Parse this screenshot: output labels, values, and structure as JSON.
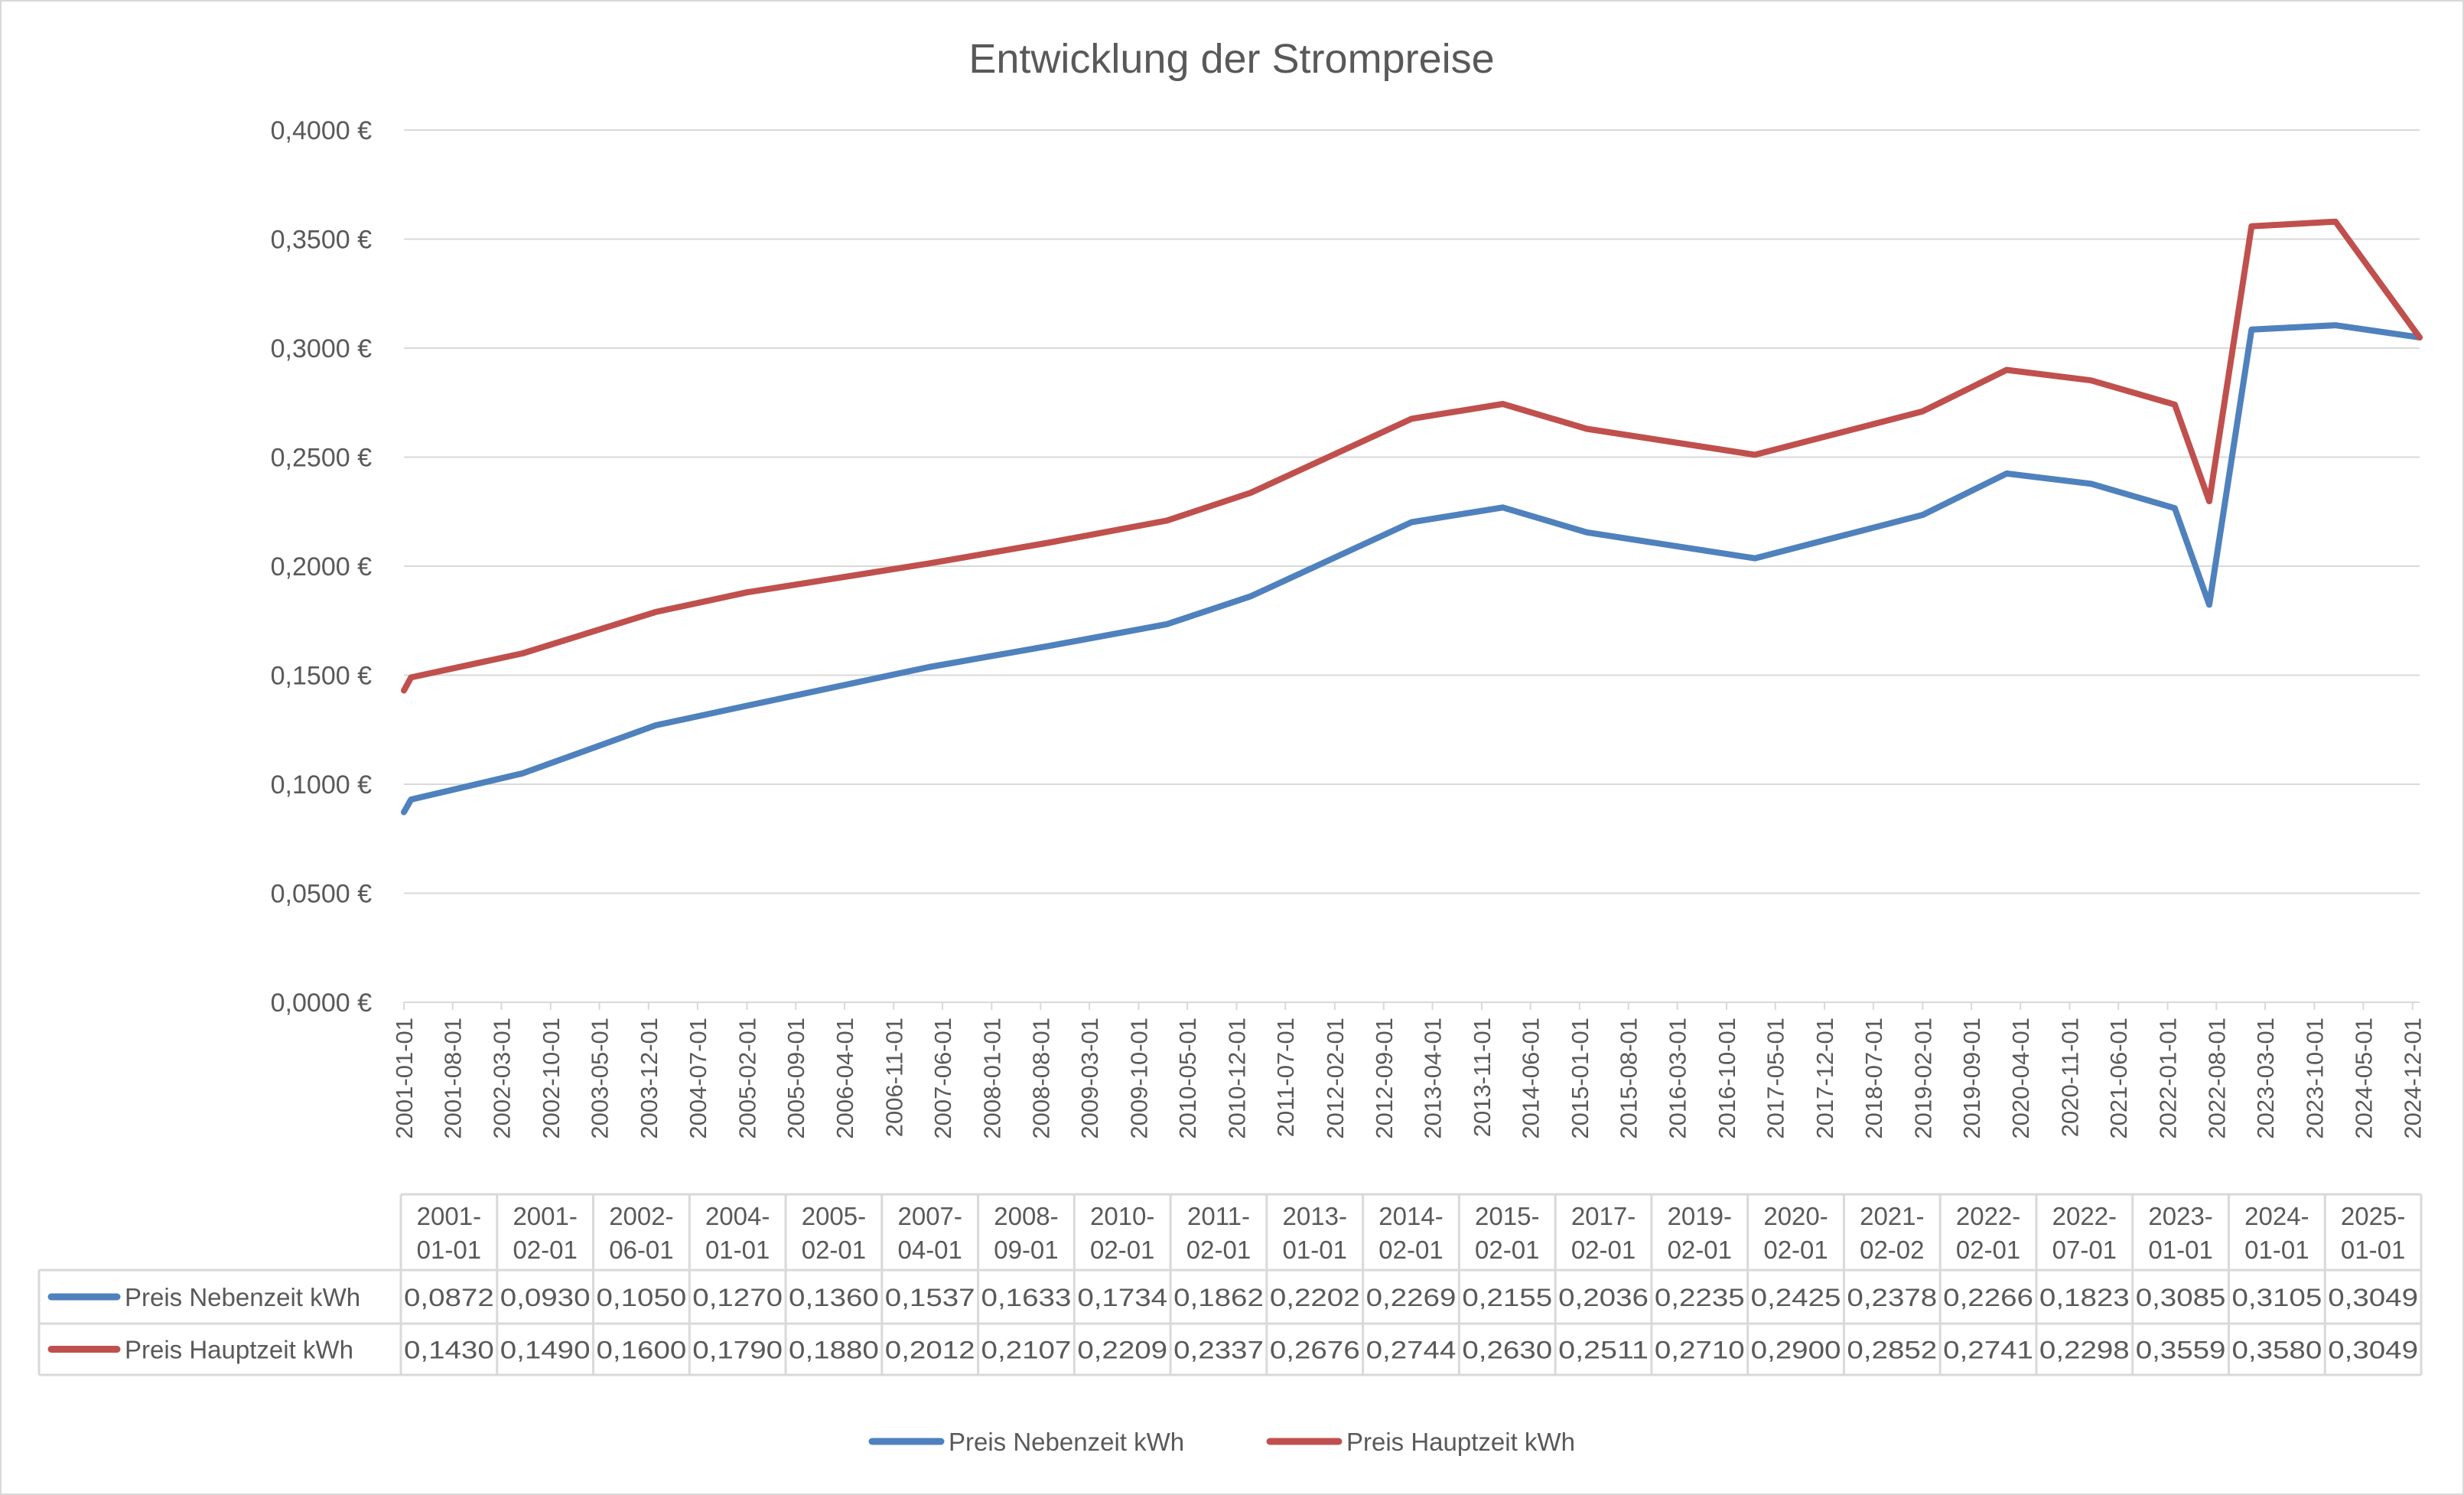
{
  "chart_data": {
    "type": "line",
    "title": "Entwicklung der Strompreise",
    "xlabel": "",
    "ylabel": "",
    "x_axis_type": "date",
    "ylim": [
      0,
      0.4
    ],
    "y_ticks": [
      "0,0000 €",
      "0,0500 €",
      "0,1000 €",
      "0,1500 €",
      "0,2000 €",
      "0,2500 €",
      "0,3000 €",
      "0,3500 €",
      "0,4000 €"
    ],
    "y_tick_values": [
      0,
      0.05,
      0.1,
      0.15,
      0.2,
      0.25,
      0.3,
      0.35,
      0.4
    ],
    "x_ticks": [
      "2001-01-01",
      "2001-08-01",
      "2002-03-01",
      "2002-10-01",
      "2003-05-01",
      "2003-12-01",
      "2004-07-01",
      "2005-02-01",
      "2005-09-01",
      "2006-04-01",
      "2006-11-01",
      "2007-06-01",
      "2008-01-01",
      "2008-08-01",
      "2009-03-01",
      "2009-10-01",
      "2010-05-01",
      "2010-12-01",
      "2011-07-01",
      "2012-02-01",
      "2012-09-01",
      "2013-04-01",
      "2013-11-01",
      "2014-06-01",
      "2015-01-01",
      "2015-08-01",
      "2016-03-01",
      "2016-10-01",
      "2017-05-01",
      "2017-12-01",
      "2018-07-01",
      "2019-02-01",
      "2019-09-01",
      "2020-04-01",
      "2020-11-01",
      "2021-06-01",
      "2022-01-01",
      "2022-08-01",
      "2023-03-01",
      "2023-10-01",
      "2024-05-01",
      "2024-12-01"
    ],
    "grid": "horizontal",
    "legend_position": "bottom",
    "data_table": true,
    "x": [
      "2001-01-01",
      "2001-02-01",
      "2002-06-01",
      "2004-01-01",
      "2005-02-01",
      "2007-04-01",
      "2008-09-01",
      "2010-02-01",
      "2011-02-01",
      "2013-01-01",
      "2014-02-01",
      "2015-02-01",
      "2017-02-01",
      "2019-02-01",
      "2020-02-01",
      "2021-02-02",
      "2022-02-01",
      "2022-07-01",
      "2023-01-01",
      "2024-01-01",
      "2025-01-01"
    ],
    "x_table_labels": [
      [
        "2001-",
        "01-01"
      ],
      [
        "2001-",
        "02-01"
      ],
      [
        "2002-",
        "06-01"
      ],
      [
        "2004-",
        "01-01"
      ],
      [
        "2005-",
        "02-01"
      ],
      [
        "2007-",
        "04-01"
      ],
      [
        "2008-",
        "09-01"
      ],
      [
        "2010-",
        "02-01"
      ],
      [
        "2011-",
        "02-01"
      ],
      [
        "2013-",
        "01-01"
      ],
      [
        "2014-",
        "02-01"
      ],
      [
        "2015-",
        "02-01"
      ],
      [
        "2017-",
        "02-01"
      ],
      [
        "2019-",
        "02-01"
      ],
      [
        "2020-",
        "02-01"
      ],
      [
        "2021-",
        "02-02"
      ],
      [
        "2022-",
        "02-01"
      ],
      [
        "2022-",
        "07-01"
      ],
      [
        "2023-",
        "01-01"
      ],
      [
        "2024-",
        "01-01"
      ],
      [
        "2025-",
        "01-01"
      ]
    ],
    "series": [
      {
        "name": "Preis Nebenzeit kWh",
        "color": "#4F81BD",
        "values": [
          0.0872,
          0.093,
          0.105,
          0.127,
          0.136,
          0.1537,
          0.1633,
          0.1734,
          0.1862,
          0.2202,
          0.2269,
          0.2155,
          0.2036,
          0.2235,
          0.2425,
          0.2378,
          0.2266,
          0.1823,
          0.3085,
          0.3105,
          0.3049
        ],
        "labels": [
          "0,0872",
          "0,0930",
          "0,1050",
          "0,1270",
          "0,1360",
          "0,1537",
          "0,1633",
          "0,1734",
          "0,1862",
          "0,2202",
          "0,2269",
          "0,2155",
          "0,2036",
          "0,2235",
          "0,2425",
          "0,2378",
          "0,2266",
          "0,1823",
          "0,3085",
          "0,3105",
          "0,3049"
        ]
      },
      {
        "name": "Preis Hauptzeit kWh",
        "color": "#C0504D",
        "values": [
          0.143,
          0.149,
          0.16,
          0.179,
          0.188,
          0.2012,
          0.2107,
          0.2209,
          0.2337,
          0.2676,
          0.2744,
          0.263,
          0.2511,
          0.271,
          0.29,
          0.2852,
          0.2741,
          0.2298,
          0.3559,
          0.358,
          0.3049
        ],
        "labels": [
          "0,1430",
          "0,1490",
          "0,1600",
          "0,1790",
          "0,1880",
          "0,2012",
          "0,2107",
          "0,2209",
          "0,2337",
          "0,2676",
          "0,2744",
          "0,2630",
          "0,2511",
          "0,2710",
          "0,2900",
          "0,2852",
          "0,2741",
          "0,2298",
          "0,3559",
          "0,3580",
          "0,3049"
        ]
      }
    ]
  }
}
